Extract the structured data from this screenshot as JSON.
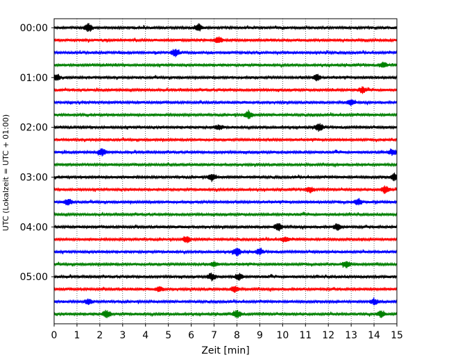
{
  "chart_data": {
    "type": "line",
    "xlabel": "Zeit  [min]",
    "ylabel": "UTC (Lokalzeit = UTC + 01:00)",
    "xlim": [
      0,
      15
    ],
    "xticks": [
      0,
      1,
      2,
      3,
      4,
      5,
      6,
      7,
      8,
      9,
      10,
      11,
      12,
      13,
      14,
      15
    ],
    "xtick_labels": [
      "0",
      "1",
      "2",
      "3",
      "4",
      "5",
      "6",
      "7",
      "8",
      "9",
      "10",
      "11",
      "12",
      "13",
      "14",
      "15"
    ],
    "ytick_labels": [
      "00:00",
      "01:00",
      "02:00",
      "03:00",
      "04:00",
      "05:00"
    ],
    "ytick_trace_index": [
      0,
      4,
      8,
      12,
      16,
      20
    ],
    "grid": "vertical dotted at each minute",
    "trace_count": 24,
    "trace_interval_min": 15,
    "trace_colors": [
      "#000000",
      "#ff0000",
      "#0000ff",
      "#008000"
    ],
    "events": [
      {
        "trace": 0,
        "x": 1.5,
        "a": 1.0
      },
      {
        "trace": 0,
        "x": 6.3,
        "a": 0.9
      },
      {
        "trace": 1,
        "x": 7.2,
        "a": 0.8
      },
      {
        "trace": 2,
        "x": 5.3,
        "a": 1.0
      },
      {
        "trace": 3,
        "x": 14.4,
        "a": 0.7
      },
      {
        "trace": 4,
        "x": 0.1,
        "a": 0.9
      },
      {
        "trace": 4,
        "x": 11.5,
        "a": 0.8
      },
      {
        "trace": 5,
        "x": 13.5,
        "a": 0.7
      },
      {
        "trace": 6,
        "x": 13.0,
        "a": 0.8
      },
      {
        "trace": 7,
        "x": 8.5,
        "a": 1.0
      },
      {
        "trace": 8,
        "x": 7.2,
        "a": 0.6
      },
      {
        "trace": 8,
        "x": 11.6,
        "a": 0.9
      },
      {
        "trace": 10,
        "x": 2.1,
        "a": 1.0
      },
      {
        "trace": 10,
        "x": 14.8,
        "a": 0.7
      },
      {
        "trace": 12,
        "x": 6.9,
        "a": 1.0
      },
      {
        "trace": 12,
        "x": 14.9,
        "a": 1.0
      },
      {
        "trace": 13,
        "x": 14.5,
        "a": 1.0
      },
      {
        "trace": 13,
        "x": 11.2,
        "a": 0.7
      },
      {
        "trace": 14,
        "x": 0.6,
        "a": 0.8
      },
      {
        "trace": 14,
        "x": 13.3,
        "a": 0.7
      },
      {
        "trace": 16,
        "x": 9.8,
        "a": 1.0
      },
      {
        "trace": 16,
        "x": 12.4,
        "a": 0.8
      },
      {
        "trace": 17,
        "x": 5.8,
        "a": 0.8
      },
      {
        "trace": 17,
        "x": 10.1,
        "a": 0.7
      },
      {
        "trace": 18,
        "x": 8.0,
        "a": 1.0
      },
      {
        "trace": 18,
        "x": 9.0,
        "a": 0.7
      },
      {
        "trace": 19,
        "x": 12.8,
        "a": 0.8
      },
      {
        "trace": 19,
        "x": 7.0,
        "a": 0.6
      },
      {
        "trace": 20,
        "x": 6.9,
        "a": 0.9
      },
      {
        "trace": 20,
        "x": 8.1,
        "a": 0.8
      },
      {
        "trace": 21,
        "x": 7.9,
        "a": 0.8
      },
      {
        "trace": 21,
        "x": 4.6,
        "a": 0.6
      },
      {
        "trace": 22,
        "x": 1.5,
        "a": 0.7
      },
      {
        "trace": 22,
        "x": 14.0,
        "a": 0.7
      },
      {
        "trace": 23,
        "x": 2.3,
        "a": 1.0
      },
      {
        "trace": 23,
        "x": 8.0,
        "a": 1.0
      },
      {
        "trace": 23,
        "x": 14.3,
        "a": 0.8
      }
    ]
  }
}
